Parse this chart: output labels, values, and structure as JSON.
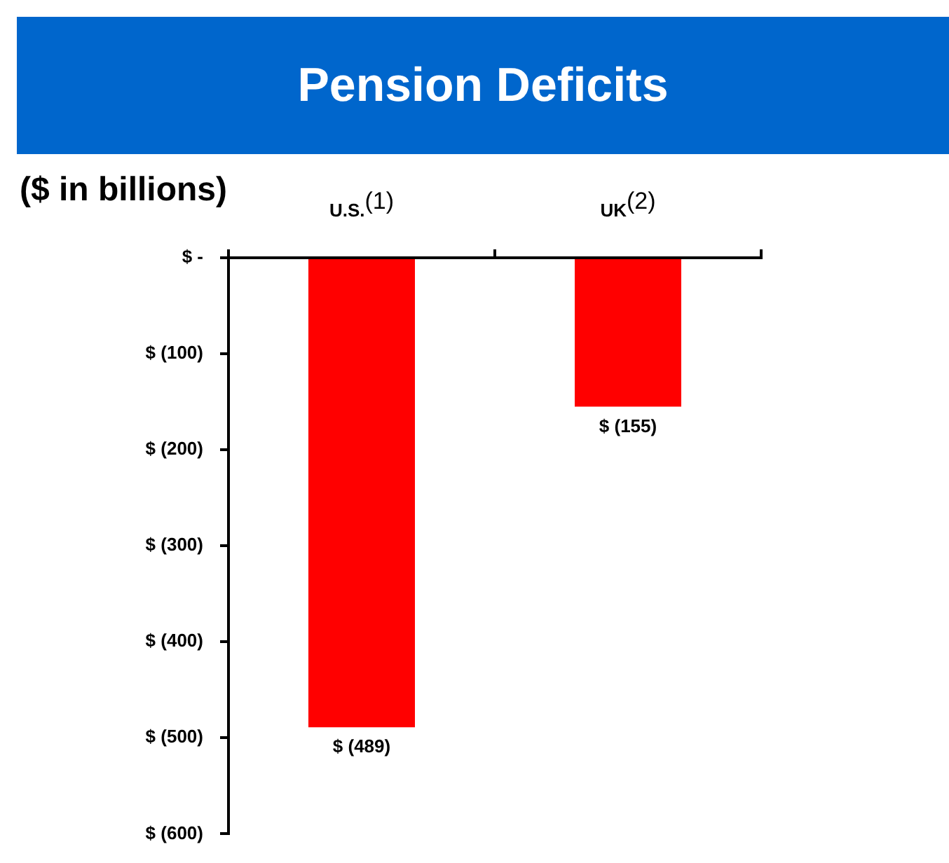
{
  "chart_data": {
    "type": "bar",
    "title": "Pension Deficits",
    "ylabel": "($ in billions)",
    "categories": [
      "U.S.$^{(1)}$",
      "UK$^{(2)}$"
    ],
    "values": [
      -489,
      -155
    ],
    "value_labels": [
      "$ (489)",
      "$ (155)"
    ],
    "color": "#ff0000",
    "ylim": [
      -600,
      0
    ],
    "yticks": [
      {
        "value": 0,
        "label": "$ -"
      },
      {
        "value": -100,
        "label": "$ (100)"
      },
      {
        "value": -200,
        "label": "$ (200)"
      },
      {
        "value": -300,
        "label": "$ (300)"
      },
      {
        "value": -400,
        "label": "$ (400)"
      },
      {
        "value": -500,
        "label": "$ (500)"
      },
      {
        "value": -600,
        "label": "$ (600)"
      }
    ]
  }
}
